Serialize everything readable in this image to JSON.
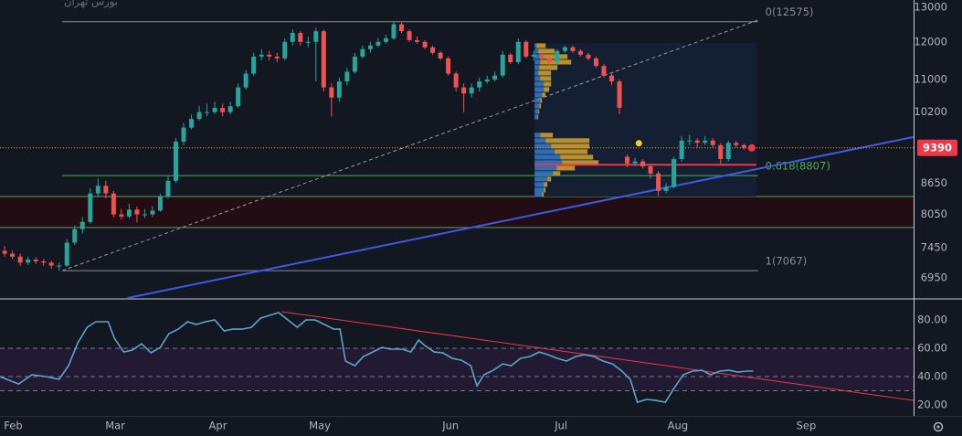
{
  "title": "بورس تهران",
  "chart_data": [
    {
      "type": "candlestick",
      "xlim": [
        -0.6,
        116.8
      ],
      "xticks": [
        {
          "value": 1.1,
          "label": "Feb"
        },
        {
          "value": 14.2,
          "label": "Mar"
        },
        {
          "value": 27.4,
          "label": "Apr"
        },
        {
          "value": 40.5,
          "label": "May"
        },
        {
          "value": 57.3,
          "label": "Jun"
        },
        {
          "value": 71.5,
          "label": "Jul"
        },
        {
          "value": 86.5,
          "label": "Aug"
        },
        {
          "value": 103.0,
          "label": "Sep"
        }
      ],
      "ylim": [
        6634,
        13222
      ],
      "yscale": "log",
      "yticks": [
        6950,
        7450,
        8050,
        8650,
        10200,
        11000,
        12000,
        13000
      ],
      "up_color": "#26a69a",
      "down_color": "#ef5350",
      "x": [
        0,
        1,
        2,
        3,
        4,
        5,
        6,
        7,
        8,
        9,
        10,
        11,
        12,
        13,
        14,
        15,
        16,
        17,
        18,
        19,
        20,
        21,
        22,
        23,
        24,
        25,
        26,
        27,
        28,
        29,
        30,
        31,
        32,
        33,
        34,
        35,
        36,
        37,
        38,
        39,
        40,
        41,
        42,
        43,
        44,
        45,
        46,
        47,
        48,
        49,
        50,
        51,
        52,
        53,
        54,
        55,
        56,
        57,
        58,
        59,
        60,
        61,
        62,
        63,
        64,
        65,
        66,
        67,
        68,
        69,
        70,
        71,
        72,
        73,
        74,
        75,
        76,
        77,
        78,
        79,
        80,
        81,
        82,
        83,
        84,
        85,
        86,
        87,
        88,
        89,
        90,
        91,
        92,
        93,
        94,
        95,
        96
      ],
      "open": [
        7400,
        7350,
        7300,
        7200,
        7250,
        7220,
        7200,
        7150,
        7150,
        7540,
        7780,
        7910,
        8450,
        8600,
        8450,
        8050,
        8010,
        8140,
        8050,
        8050,
        8120,
        8390,
        8700,
        9525,
        9840,
        10040,
        10200,
        10200,
        10300,
        10200,
        10340,
        10800,
        11150,
        11600,
        11650,
        11600,
        11550,
        12000,
        12250,
        12000,
        12000,
        12300,
        10800,
        10550,
        10950,
        11200,
        11600,
        11800,
        11900,
        12000,
        12100,
        12500,
        12300,
        12050,
        12000,
        11850,
        11700,
        11550,
        11150,
        10800,
        10650,
        10800,
        10950,
        11000,
        11100,
        11650,
        11450,
        12000,
        11600,
        11650,
        11550,
        11450,
        11750,
        11850,
        11750,
        11650,
        11550,
        11350,
        11100,
        10950,
        9200,
        9060,
        9100,
        9000,
        8850,
        8500,
        8580,
        9150,
        9550,
        9550,
        9500,
        9550,
        9450,
        9150,
        9500,
        9450,
        9390
      ],
      "high": [
        7480,
        7400,
        7350,
        7300,
        7290,
        7260,
        7230,
        7200,
        7600,
        7850,
        8000,
        8550,
        8750,
        8700,
        8500,
        8150,
        8250,
        8200,
        8150,
        8200,
        8450,
        8800,
        9600,
        9950,
        10150,
        10350,
        10400,
        10450,
        10400,
        10450,
        10900,
        11250,
        11700,
        11800,
        11750,
        11700,
        12100,
        12350,
        12300,
        12150,
        12400,
        12350,
        10900,
        11050,
        11300,
        11700,
        11900,
        12000,
        12100,
        12200,
        12575,
        12550,
        12350,
        12150,
        12050,
        11900,
        11750,
        11600,
        11200,
        10900,
        10900,
        11050,
        11100,
        11200,
        11750,
        11700,
        12100,
        12050,
        11750,
        11700,
        11600,
        11800,
        11900,
        11900,
        11800,
        11700,
        11600,
        11400,
        11150,
        11000,
        9250,
        9180,
        9150,
        9050,
        8900,
        8650,
        9200,
        9650,
        9680,
        9600,
        9650,
        9600,
        9500,
        9550,
        9550,
        9480,
        9450
      ],
      "low": [
        7300,
        7260,
        7150,
        7160,
        7180,
        7150,
        7100,
        7067,
        7130,
        7500,
        7700,
        7880,
        8400,
        8350,
        8000,
        7950,
        7980,
        7900,
        7980,
        8000,
        8100,
        8350,
        8650,
        9450,
        9800,
        10000,
        10100,
        10150,
        10100,
        10150,
        10300,
        10750,
        11100,
        11500,
        11500,
        11450,
        11500,
        11900,
        11900,
        11850,
        10950,
        10700,
        10100,
        10450,
        10850,
        11150,
        11550,
        11700,
        11850,
        11950,
        12050,
        12250,
        12000,
        11950,
        11800,
        11650,
        11500,
        11100,
        10700,
        10200,
        10550,
        10700,
        10900,
        10950,
        11050,
        11400,
        11400,
        11550,
        11500,
        11450,
        11350,
        11400,
        11700,
        11700,
        11600,
        11500,
        11300,
        11050,
        10850,
        10150,
        8980,
        9000,
        8950,
        8750,
        8400,
        8450,
        8550,
        9100,
        9450,
        9400,
        9450,
        9400,
        9050,
        9100,
        9400,
        9350,
        9350
      ],
      "close": [
        7350,
        7300,
        7200,
        7250,
        7220,
        7200,
        7150,
        7150,
        7540,
        7780,
        7910,
        8450,
        8600,
        8450,
        8050,
        8010,
        8140,
        8050,
        8050,
        8120,
        8390,
        8700,
        9525,
        9840,
        10040,
        10200,
        10200,
        10300,
        10200,
        10340,
        10800,
        11150,
        11600,
        11650,
        11600,
        11550,
        12000,
        12250,
        12000,
        12000,
        12300,
        10800,
        10550,
        10950,
        11200,
        11600,
        11800,
        11900,
        12000,
        12100,
        12500,
        12300,
        12050,
        12000,
        11850,
        11700,
        11550,
        11150,
        10800,
        10650,
        10800,
        10950,
        11000,
        11100,
        11650,
        11450,
        12000,
        11600,
        11650,
        11550,
        11450,
        11750,
        11850,
        11750,
        11650,
        11550,
        11350,
        11100,
        10950,
        10300,
        9060,
        9100,
        9000,
        8850,
        8500,
        8580,
        9150,
        9550,
        9550,
        9500,
        9550,
        9450,
        9150,
        9500,
        9450,
        9390,
        9390
      ],
      "last_price": 9390,
      "last_price_color": "#f23645",
      "last_line_color": "#f7a21b",
      "fib_x": [
        7.4,
        96.8
      ],
      "fib_levels": [
        {
          "label": "0(12575)",
          "value": 12575,
          "color": "#8a8d96"
        },
        {
          "label": "0.618(8807)",
          "value": 8807,
          "color": "#4caf50"
        },
        {
          "label": "1(7067)",
          "value": 7067,
          "color": "#8a8d96"
        }
      ],
      "zone": {
        "lower": 7810,
        "upper": 8390,
        "color": "#230d14",
        "line_color": "#5fa05a"
      },
      "trend_lines": [
        {
          "from": [
            7.4,
            7067
          ],
          "to": [
            96.8,
            12620
          ],
          "color": "#9598a1",
          "dash": true
        },
        {
          "from": [
            15.8,
            6634
          ],
          "to": [
            116.8,
            9630
          ],
          "color": "#3d5be0",
          "dash": false
        }
      ],
      "poc": {
        "value": 9030,
        "x": [
          68.1,
          96.6
        ],
        "color": "#f23645"
      },
      "volume_profile": {
        "x": [
          68.1,
          96.6
        ],
        "ylim": [
          8390,
          11970
        ],
        "color": "#151f33",
        "up_color": "#2e6db8",
        "down_color": "#b8912e",
        "levels": [
          11895,
          11746,
          11598,
          11452,
          11308,
          11165,
          11024,
          10885,
          10748,
          10612,
          10478,
          10346,
          10216,
          10087,
          9670,
          9548,
          9427,
          9308,
          9191,
          9075,
          8961,
          8848,
          8736,
          8626,
          8517,
          8427
        ],
        "up": [
          2,
          4,
          6,
          6,
          5,
          4,
          6,
          10,
          10,
          8,
          6,
          5,
          4,
          3,
          6,
          12,
          18,
          22,
          28,
          30,
          24,
          20,
          14,
          10,
          10,
          8
        ],
        "down": [
          10,
          18,
          30,
          34,
          20,
          14,
          12,
          8,
          6,
          4,
          2,
          2,
          1,
          1,
          14,
          48,
          42,
          36,
          36,
          40,
          20,
          8,
          4,
          4,
          2,
          2
        ]
      },
      "markers": [
        {
          "x": 81.5,
          "y": 9490,
          "color": "#f5d20a"
        }
      ]
    },
    {
      "type": "line",
      "xlim": [
        -0.6,
        116.8
      ],
      "ylim": [
        12.3,
        94.2
      ],
      "yticks": [
        {
          "value": 20,
          "label": "20.00"
        },
        {
          "value": 40,
          "label": "40.00"
        },
        {
          "value": 60,
          "label": "60.00"
        },
        {
          "value": 80,
          "label": "80.00"
        }
      ],
      "color": "#5aa5c8",
      "levels": [
        60,
        40,
        30
      ],
      "level_color": "#787b86",
      "band": [
        30,
        60
      ],
      "band_color": "#221a33",
      "x": [
        -0.6,
        1.8,
        3.5,
        5.3,
        7.0,
        8.2,
        9.4,
        10.6,
        11.7,
        13.3,
        14.1,
        15.3,
        16.4,
        17.6,
        18.8,
        20.0,
        21.1,
        22.3,
        23.5,
        24.6,
        25.8,
        27.0,
        28.2,
        29.3,
        30.5,
        31.7,
        32.9,
        34.0,
        35.2,
        36.4,
        37.6,
        38.7,
        39.9,
        41.1,
        42.3,
        43.1,
        43.8,
        45.0,
        46.1,
        47.3,
        48.5,
        49.6,
        51.1,
        52.2,
        53.2,
        54.0,
        55.2,
        56.3,
        57.5,
        58.7,
        59.9,
        60.7,
        61.6,
        62.8,
        64.0,
        65.1,
        66.3,
        67.5,
        68.7,
        69.8,
        71.0,
        72.2,
        73.4,
        74.5,
        75.7,
        76.9,
        78.1,
        79.2,
        80.4,
        81.3,
        82.5,
        83.7,
        84.9,
        86.0,
        87.2,
        88.4,
        89.6,
        90.7,
        91.9,
        93.1,
        94.2,
        95.4,
        96.2
      ],
      "values": [
        40,
        34.8,
        41.3,
        40,
        38.1,
        47.7,
        63.9,
        74.8,
        78.7,
        78.7,
        67.1,
        57.4,
        58.7,
        63.2,
        56.8,
        60.6,
        70.3,
        73.5,
        78.7,
        76.8,
        78.7,
        80,
        72.3,
        73.5,
        73.5,
        74.8,
        81.3,
        83.2,
        85.2,
        80,
        74.8,
        80,
        80,
        76.8,
        73.5,
        73.5,
        51,
        47.7,
        54.2,
        57.4,
        60.6,
        59.4,
        59.4,
        57.4,
        65.8,
        61.9,
        57.4,
        56.8,
        52.9,
        51.6,
        47.7,
        33.5,
        41.3,
        44.5,
        49,
        47.7,
        52.9,
        54.2,
        57.4,
        55.5,
        52.9,
        51,
        54.2,
        55.5,
        54.2,
        51,
        49,
        44.5,
        38.1,
        21.9,
        23.9,
        23.2,
        21.9,
        31.6,
        41.3,
        43.9,
        44.5,
        41.3,
        43.9,
        44.5,
        43.2,
        43.9,
        43.9
      ],
      "trend_lines": [
        {
          "from": [
            35.6,
            85.8
          ],
          "to": [
            116.8,
            23.2
          ],
          "color": "#f23645",
          "dash": false
        }
      ]
    }
  ]
}
